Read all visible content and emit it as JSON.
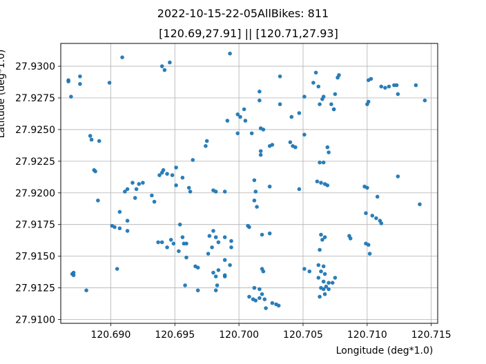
{
  "chart_data": {
    "type": "scatter",
    "title": "2022-10-15-22-05AllBikes: 811",
    "subtitle": "[120.69,27.91] || [120.71,27.93]",
    "xlabel": "Longitude (deg*1.0)",
    "ylabel": "Latitude (deg*1.0)",
    "xlim": [
      120.6861,
      120.7155
    ],
    "ylim": [
      27.9097,
      27.9318
    ],
    "xticks": [
      120.69,
      120.695,
      120.7,
      120.705,
      120.71,
      120.715
    ],
    "xtick_labels": [
      "120.690",
      "120.695",
      "120.700",
      "120.705",
      "120.710",
      "120.715"
    ],
    "yticks": [
      27.91,
      27.9125,
      27.915,
      27.9175,
      27.92,
      27.9225,
      27.925,
      27.9275,
      27.93
    ],
    "ytick_labels": [
      "27.9100",
      "27.9125",
      "27.9150",
      "27.9175",
      "27.9200",
      "27.9225",
      "27.9250",
      "27.9275",
      "27.9300"
    ],
    "grid": true,
    "point_color": "#1f77b4",
    "points": [
      [
        120.6867,
        27.9289
      ],
      [
        120.6867,
        27.9288
      ],
      [
        120.6869,
        27.9276
      ],
      [
        120.6876,
        27.9292
      ],
      [
        120.6876,
        27.9286
      ],
      [
        120.6899,
        27.9287
      ],
      [
        120.6909,
        27.9307
      ],
      [
        120.694,
        27.93
      ],
      [
        120.6942,
        27.9297
      ],
      [
        120.6946,
        27.9303
      ],
      [
        120.6871,
        27.9137
      ],
      [
        120.6871,
        27.9135
      ],
      [
        120.687,
        27.9136
      ],
      [
        120.6881,
        27.9123
      ],
      [
        120.6884,
        27.9245
      ],
      [
        120.6885,
        27.9242
      ],
      [
        120.6891,
        27.9241
      ],
      [
        120.6887,
        27.9218
      ],
      [
        120.6888,
        27.9217
      ],
      [
        120.689,
        27.9194
      ],
      [
        120.6901,
        27.9174
      ],
      [
        120.6903,
        27.9173
      ],
      [
        120.6907,
        27.9172
      ],
      [
        120.6913,
        27.9178
      ],
      [
        120.6913,
        27.917
      ],
      [
        120.6905,
        27.914
      ],
      [
        120.6907,
        27.9185
      ],
      [
        120.6911,
        27.9201
      ],
      [
        120.6913,
        27.9203
      ],
      [
        120.6917,
        27.9208
      ],
      [
        120.692,
        27.9203
      ],
      [
        120.6922,
        27.9207
      ],
      [
        120.6925,
        27.9208
      ],
      [
        120.6919,
        27.9196
      ],
      [
        120.6932,
        27.9198
      ],
      [
        120.6934,
        27.9193
      ],
      [
        120.694,
        27.9216
      ],
      [
        120.6938,
        27.9214
      ],
      [
        120.6941,
        27.9218
      ],
      [
        120.6944,
        27.9215
      ],
      [
        120.6948,
        27.9214
      ],
      [
        120.6951,
        27.922
      ],
      [
        120.6951,
        27.9206
      ],
      [
        120.6956,
        27.9212
      ],
      [
        120.6961,
        27.9204
      ],
      [
        120.6962,
        27.9201
      ],
      [
        120.6964,
        27.9226
      ],
      [
        120.6937,
        27.9161
      ],
      [
        120.694,
        27.9161
      ],
      [
        120.6944,
        27.9157
      ],
      [
        120.6947,
        27.9163
      ],
      [
        120.6949,
        27.916
      ],
      [
        120.6953,
        27.9154
      ],
      [
        120.6956,
        27.9165
      ],
      [
        120.6957,
        27.916
      ],
      [
        120.6959,
        27.916
      ],
      [
        120.6959,
        27.9149
      ],
      [
        120.6954,
        27.9175
      ],
      [
        120.6966,
        27.9142
      ],
      [
        120.6968,
        27.9141
      ],
      [
        120.6958,
        27.9127
      ],
      [
        120.6968,
        27.9123
      ],
      [
        120.6974,
        27.9237
      ],
      [
        120.6975,
        27.9241
      ],
      [
        120.698,
        27.9202
      ],
      [
        120.6982,
        27.9201
      ],
      [
        120.698,
        27.917
      ],
      [
        120.6977,
        27.9166
      ],
      [
        120.6982,
        27.9165
      ],
      [
        120.6984,
        27.9161
      ],
      [
        120.6979,
        27.9157
      ],
      [
        120.6976,
        27.9152
      ],
      [
        120.698,
        27.9137
      ],
      [
        120.6982,
        27.9134
      ],
      [
        120.6984,
        27.9139
      ],
      [
        120.6983,
        27.9127
      ],
      [
        120.6982,
        27.9123
      ],
      [
        120.6989,
        27.9201
      ],
      [
        120.6989,
        27.9165
      ],
      [
        120.6989,
        27.9147
      ],
      [
        120.6989,
        27.9135
      ],
      [
        120.6989,
        27.9134
      ],
      [
        120.6993,
        27.931
      ],
      [
        120.6991,
        27.9257
      ],
      [
        120.6994,
        27.9162
      ],
      [
        120.6994,
        27.9157
      ],
      [
        120.6993,
        27.9143
      ],
      [
        120.6999,
        27.9262
      ],
      [
        120.7001,
        27.926
      ],
      [
        120.7004,
        27.9266
      ],
      [
        120.7005,
        27.9257
      ],
      [
        120.6999,
        27.9247
      ],
      [
        120.7007,
        27.9174
      ],
      [
        120.7008,
        27.9173
      ],
      [
        120.7008,
        27.9118
      ],
      [
        120.7011,
        27.9116
      ],
      [
        120.7013,
        27.9115
      ],
      [
        120.7016,
        27.9117
      ],
      [
        120.7012,
        27.9125
      ],
      [
        120.701,
        27.9247
      ],
      [
        120.7012,
        27.921
      ],
      [
        120.7013,
        27.9201
      ],
      [
        120.7012,
        27.9194
      ],
      [
        120.7014,
        27.9189
      ],
      [
        120.7016,
        27.928
      ],
      [
        120.7016,
        27.9273
      ],
      [
        120.7017,
        27.9251
      ],
      [
        120.7019,
        27.925
      ],
      [
        120.7017,
        27.9233
      ],
      [
        120.7017,
        27.923
      ],
      [
        120.7018,
        27.9167
      ],
      [
        120.7018,
        27.914
      ],
      [
        120.7019,
        27.9138
      ],
      [
        120.7016,
        27.9124
      ],
      [
        120.7018,
        27.912
      ],
      [
        120.702,
        27.9116
      ],
      [
        120.7021,
        27.9109
      ],
      [
        120.7024,
        27.9237
      ],
      [
        120.7026,
        27.9238
      ],
      [
        120.7024,
        27.9205
      ],
      [
        120.7024,
        27.9168
      ],
      [
        120.7026,
        27.9113
      ],
      [
        120.7029,
        27.9112
      ],
      [
        120.7031,
        27.9111
      ],
      [
        120.7032,
        27.9292
      ],
      [
        120.7032,
        27.927
      ],
      [
        120.704,
        27.924
      ],
      [
        120.7042,
        27.9237
      ],
      [
        120.7044,
        27.9236
      ],
      [
        120.7041,
        27.926
      ],
      [
        120.7047,
        27.9263
      ],
      [
        120.7047,
        27.9203
      ],
      [
        120.7051,
        27.9276
      ],
      [
        120.7051,
        27.9246
      ],
      [
        120.7051,
        27.914
      ],
      [
        120.7055,
        27.9138
      ],
      [
        120.7058,
        27.9287
      ],
      [
        120.706,
        27.9295
      ],
      [
        120.7062,
        27.9284
      ],
      [
        120.7065,
        27.9274
      ],
      [
        120.7066,
        27.9276
      ],
      [
        120.7063,
        27.927
      ],
      [
        120.7064,
        27.9167
      ],
      [
        120.7067,
        27.9165
      ],
      [
        120.7065,
        27.9163
      ],
      [
        120.7063,
        27.9155
      ],
      [
        120.7061,
        27.9209
      ],
      [
        120.7064,
        27.9208
      ],
      [
        120.7067,
        27.9207
      ],
      [
        120.7069,
        27.9206
      ],
      [
        120.7063,
        27.9224
      ],
      [
        120.7066,
        27.9224
      ],
      [
        120.7069,
        27.9236
      ],
      [
        120.707,
        27.9232
      ],
      [
        120.7072,
        27.927
      ],
      [
        120.7074,
        27.9266
      ],
      [
        120.7075,
        27.9278
      ],
      [
        120.7074,
        27.9266
      ],
      [
        120.7062,
        27.9143
      ],
      [
        120.7064,
        27.9138
      ],
      [
        120.7067,
        27.9136
      ],
      [
        120.7066,
        27.9142
      ],
      [
        120.7062,
        27.9133
      ],
      [
        120.7066,
        27.913
      ],
      [
        120.7064,
        27.9125
      ],
      [
        120.7066,
        27.9124
      ],
      [
        120.7068,
        27.9126
      ],
      [
        120.707,
        27.9129
      ],
      [
        120.7073,
        27.9129
      ],
      [
        120.7075,
        27.9133
      ],
      [
        120.7063,
        27.9118
      ],
      [
        120.7067,
        27.912
      ],
      [
        120.707,
        27.9124
      ],
      [
        120.7077,
        27.9291
      ],
      [
        120.7078,
        27.9293
      ],
      [
        120.7086,
        27.9166
      ],
      [
        120.7087,
        27.9164
      ],
      [
        120.7098,
        27.9205
      ],
      [
        120.71,
        27.9204
      ],
      [
        120.7099,
        27.9184
      ],
      [
        120.7099,
        27.916
      ],
      [
        120.7101,
        27.9159
      ],
      [
        120.71,
        27.927
      ],
      [
        120.7101,
        27.9272
      ],
      [
        120.7101,
        27.9289
      ],
      [
        120.7103,
        27.929
      ],
      [
        120.7102,
        27.9152
      ],
      [
        120.7104,
        27.9182
      ],
      [
        120.7107,
        27.918
      ],
      [
        120.711,
        27.9178
      ],
      [
        120.7111,
        27.9176
      ],
      [
        120.7108,
        27.9197
      ],
      [
        120.7111,
        27.9284
      ],
      [
        120.7114,
        27.9283
      ],
      [
        120.7117,
        27.9284
      ],
      [
        120.7121,
        27.9285
      ],
      [
        120.7123,
        27.9285
      ],
      [
        120.7124,
        27.9278
      ],
      [
        120.7124,
        27.9213
      ],
      [
        120.7138,
        27.9285
      ],
      [
        120.7141,
        27.9191
      ],
      [
        120.7145,
        27.9273
      ]
    ]
  }
}
